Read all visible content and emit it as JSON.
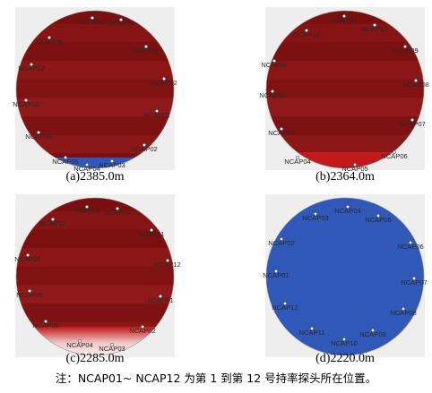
{
  "panels": [
    {
      "caption": "(a)2385.0m",
      "fill": "red",
      "redband": false,
      "blueband": true,
      "probes": [
        {
          "label": "NCAP03",
          "angle": 0
        },
        {
          "label": "NCAP10",
          "angle": 0
        },
        {
          "label": "NCAP09",
          "angle": 0
        },
        {
          "label": "NCAP11",
          "angle": 0
        },
        {
          "label": "NCAP07",
          "angle": 0
        },
        {
          "label": "NCAP12",
          "angle": 0
        },
        {
          "label": "NCAP08",
          "angle": 0
        },
        {
          "label": "NCAP01",
          "angle": 0
        },
        {
          "label": "NCAP06",
          "angle": 0
        },
        {
          "label": "NCAP02",
          "angle": 0
        },
        {
          "label": "NCAP05",
          "angle": 0
        },
        {
          "label": "NCAP04",
          "angle": 0
        },
        {
          "label": "NCAP03",
          "angle": 0
        }
      ]
    },
    {
      "caption": "(b)2364.0m",
      "fill": "red",
      "redband": true,
      "blueband": false,
      "probes": [
        {
          "label": "NCAP11"
        },
        {
          "label": "NCAP10"
        },
        {
          "label": "NCAP12"
        },
        {
          "label": "NCAP09"
        },
        {
          "label": "NCAP01"
        },
        {
          "label": "NCAP08"
        },
        {
          "label": "NCAP02"
        },
        {
          "label": "NCAP07"
        },
        {
          "label": "NCAP03"
        },
        {
          "label": "NCAP06"
        },
        {
          "label": "NCAP04"
        },
        {
          "label": "NCAP05"
        }
      ]
    },
    {
      "caption": "(c)2285.0m",
      "fill": "red",
      "redband": false,
      "blueband": false,
      "whiteband": true,
      "probes": [
        {
          "label": "NCAP09"
        },
        {
          "label": "NCAP08"
        },
        {
          "label": "NCAP10"
        },
        {
          "label": "NCAP11"
        },
        {
          "label": "NCAP12"
        },
        {
          "label": "NCAP07"
        },
        {
          "label": "NCAP01"
        },
        {
          "label": "NCAP06"
        },
        {
          "label": "NCAP02"
        },
        {
          "label": "NCAP05"
        },
        {
          "label": "NCAP03"
        },
        {
          "label": "NCAP04"
        }
      ]
    },
    {
      "caption": "(d)2220.0m",
      "fill": "blue",
      "probes": [
        {
          "label": "NCAP03"
        },
        {
          "label": "NCAP04"
        },
        {
          "label": "NCAP05"
        },
        {
          "label": "NCAP02"
        },
        {
          "label": "NCAP06"
        },
        {
          "label": "NCAP01"
        },
        {
          "label": "NCAP07"
        },
        {
          "label": "NCAP12"
        },
        {
          "label": "NCAP08"
        },
        {
          "label": "NCAP11"
        },
        {
          "label": "NCAP09"
        },
        {
          "label": "NCAP10"
        }
      ]
    }
  ],
  "note": "注：NCAP01~ NCAP12 为第 1 到第 12 号持率探头所在位置。",
  "colors": {
    "red_dark": "#6e0a0a",
    "red_mid": "#8b1414",
    "blue": "#2f58b8",
    "background_box": "#eeeeee"
  }
}
